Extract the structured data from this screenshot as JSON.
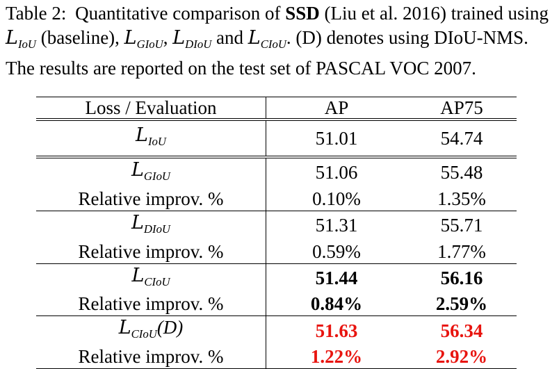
{
  "caption": {
    "label": "Table 2:",
    "text_before": "Quantitative comparison of",
    "model": "SSD",
    "text_middle": "(Liu et al. 2016) trained using",
    "loss_iou": "L",
    "loss_iou_sub": "IoU",
    "baseline": "(baseline),",
    "loss_giou_sub": "GIoU",
    "loss_diou_sub": "DIoU",
    "and": "and",
    "loss_ciou_sub": "CIoU",
    "text_after": ". (D) denotes using DIoU-NMS. The results are reported on the test set of PASCAL VOC 2007."
  },
  "table": {
    "headers": [
      "Loss / Evaluation",
      "AP",
      "AP75"
    ],
    "loss_symbol": "L",
    "rows": [
      {
        "label_sub": "IoU",
        "suffix": "",
        "ap": "51.01",
        "ap75": "54.74",
        "style": "normal"
      },
      {
        "label_sub": "GIoU",
        "suffix": "",
        "ap": "51.06",
        "ap75": "55.48",
        "style": "normal"
      },
      {
        "label": "Relative improv. %",
        "ap": "0.10%",
        "ap75": "1.35%",
        "style": "normal"
      },
      {
        "label_sub": "DIoU",
        "suffix": "",
        "ap": "51.31",
        "ap75": "55.71",
        "style": "normal"
      },
      {
        "label": "Relative improv. %",
        "ap": "0.59%",
        "ap75": "1.77%",
        "style": "normal"
      },
      {
        "label_sub": "CIoU",
        "suffix": "",
        "ap": "51.44",
        "ap75": "56.16",
        "style": "bold"
      },
      {
        "label": "Relative improv. %",
        "ap": "0.84%",
        "ap75": "2.59%",
        "style": "bold"
      },
      {
        "label_sub": "CIoU",
        "suffix": "(D)",
        "ap": "51.63",
        "ap75": "56.34",
        "style": "red"
      },
      {
        "label": "Relative improv. %",
        "ap": "1.22%",
        "ap75": "2.92%",
        "style": "red"
      }
    ]
  },
  "colors": {
    "highlight": "#e8140f",
    "text": "#000000"
  }
}
